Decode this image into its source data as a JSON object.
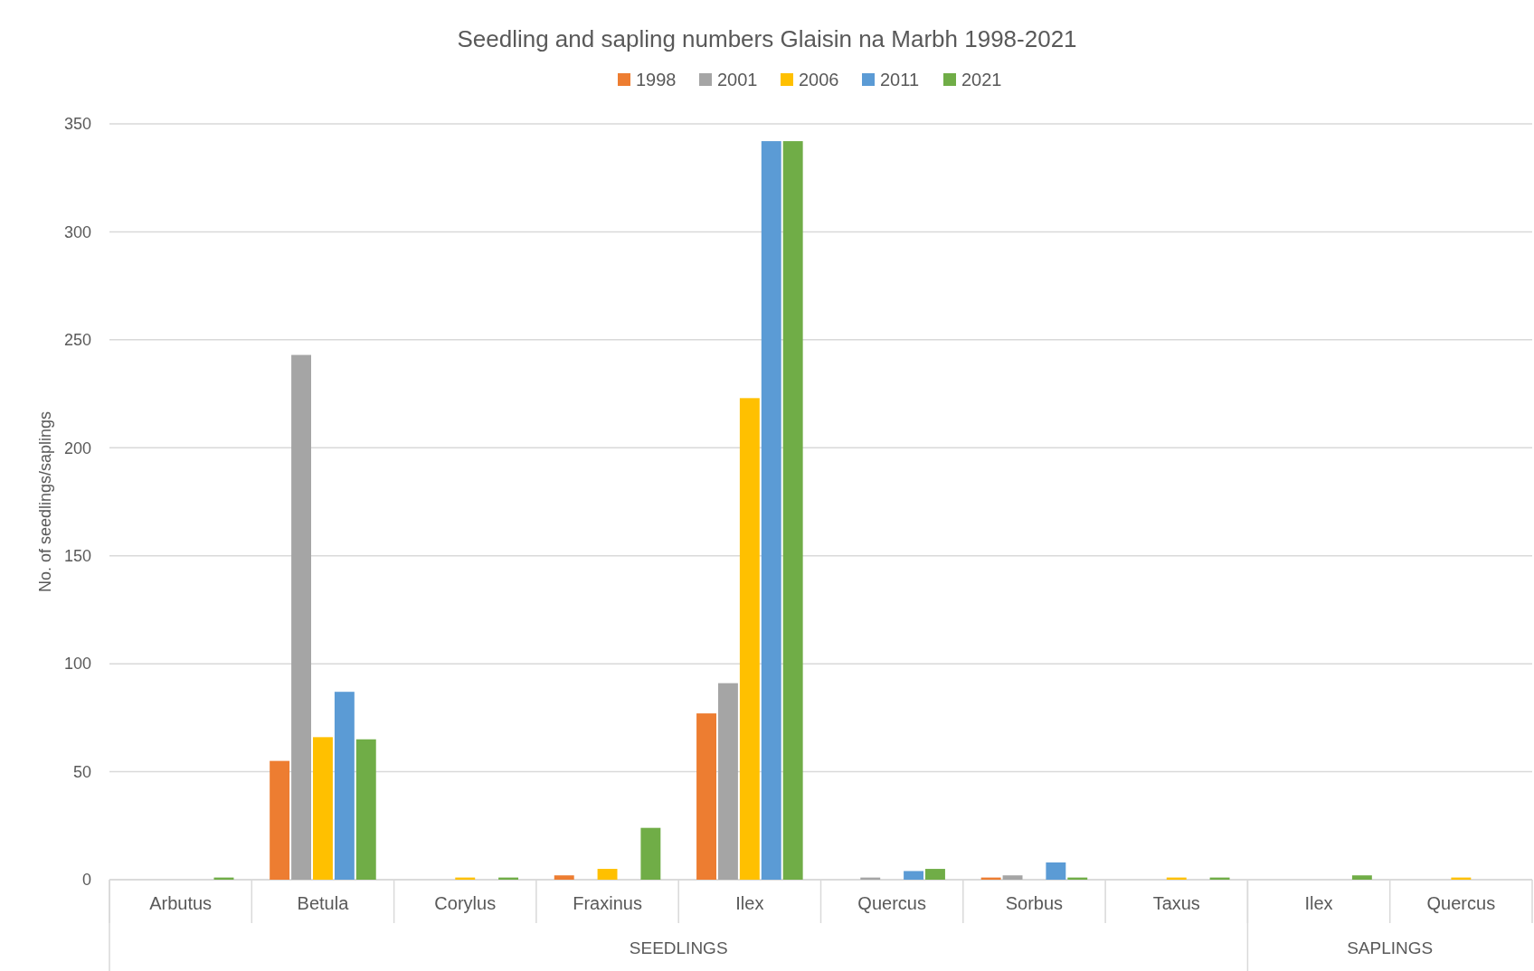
{
  "chart_data": {
    "type": "bar",
    "title": "Seedling and sapling numbers Glaisin na Marbh 1998-2021",
    "ylabel": "No. of seedlings/saplings",
    "categories": [
      "Arbutus",
      "Betula",
      "Corylus",
      "Fraxinus",
      "Ilex",
      "Quercus",
      "Sorbus",
      "Taxus",
      "Ilex",
      "Quercus"
    ],
    "series": [
      {
        "name": "1998",
        "color": "#ed7d31",
        "values": [
          0,
          55,
          0,
          2,
          77,
          0,
          1,
          0,
          0,
          0
        ]
      },
      {
        "name": "2001",
        "color": "#a5a5a5",
        "values": [
          0,
          243,
          0,
          0,
          91,
          1,
          2,
          0,
          0,
          0
        ]
      },
      {
        "name": "2006",
        "color": "#ffc000",
        "values": [
          0,
          66,
          1,
          5,
          223,
          0,
          0,
          1,
          0,
          1
        ]
      },
      {
        "name": "2011",
        "color": "#5b9bd5",
        "values": [
          0,
          87,
          0,
          0,
          342,
          4,
          8,
          0,
          0,
          0
        ]
      },
      {
        "name": "2021",
        "color": "#70ad47",
        "values": [
          1,
          65,
          1,
          24,
          342,
          5,
          1,
          1,
          2,
          0
        ]
      }
    ],
    "annotations": [
      "SEEDLINGS",
      "SAPLINGS"
    ],
    "ylim": [
      0,
      350
    ],
    "yticks": [
      0,
      50,
      100,
      150,
      200,
      250,
      300,
      350
    ],
    "grid": "y",
    "legend": "top"
  }
}
